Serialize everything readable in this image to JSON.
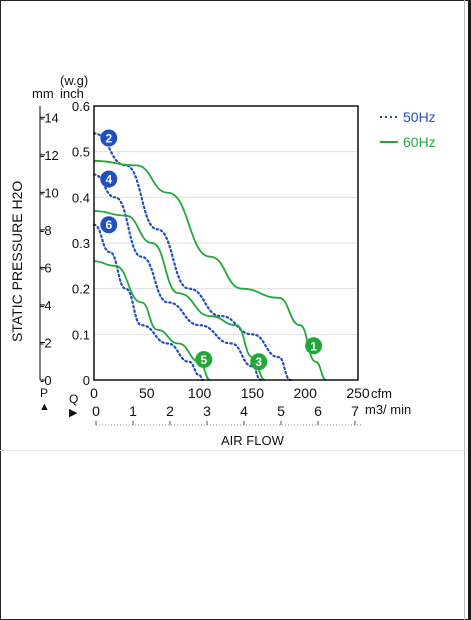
{
  "chart_data": {
    "type": "line",
    "y_units": {
      "mm": "mm",
      "inch": "inch",
      "wg": "(w.g)"
    },
    "ylabel": "STATIC PRESSURE H2O",
    "xlabel": "AIR FLOW",
    "x_units": {
      "cfm": "cfm",
      "m3": "m3/ min"
    },
    "p_marker": "P",
    "q_marker": "Q",
    "xlim": [
      0,
      250
    ],
    "ylim": [
      0,
      0.6
    ],
    "x_ticks_cfm": [
      0,
      50,
      100,
      150,
      200,
      250
    ],
    "x_ticks_m3": [
      0,
      1,
      2,
      3,
      4,
      5,
      6,
      7
    ],
    "y_ticks_inch": [
      "0",
      "0.1",
      "0.2",
      "0.3",
      "0.4",
      "0.5",
      "0.6"
    ],
    "y_ticks_mm": [
      0,
      2,
      4,
      6,
      8,
      10,
      12,
      14
    ],
    "grid": "horizontal",
    "legend": {
      "position": "top-right",
      "items": [
        {
          "label": "50Hz",
          "style": "dotted",
          "color": "#1f4fc0"
        },
        {
          "label": "60Hz",
          "style": "solid",
          "color": "#22a83a"
        }
      ]
    },
    "series": [
      {
        "name": "50Hz",
        "marker": "2",
        "color": "#1f4fc0",
        "style": "dotted",
        "x": [
          0,
          30,
          60,
          90,
          120,
          150,
          175,
          186
        ],
        "y": [
          0.54,
          0.47,
          0.33,
          0.2,
          0.14,
          0.1,
          0.05,
          0.0
        ]
      },
      {
        "name": "50Hz",
        "marker": "4",
        "color": "#1f4fc0",
        "style": "dotted",
        "x": [
          0,
          20,
          45,
          70,
          100,
          130,
          150,
          158
        ],
        "y": [
          0.45,
          0.4,
          0.27,
          0.17,
          0.12,
          0.08,
          0.03,
          0.0
        ]
      },
      {
        "name": "50Hz",
        "marker": "6",
        "color": "#1f4fc0",
        "style": "dotted",
        "x": [
          0,
          15,
          30,
          45,
          70,
          90,
          100,
          103
        ],
        "y": [
          0.34,
          0.28,
          0.2,
          0.12,
          0.08,
          0.04,
          0.01,
          0.0
        ]
      },
      {
        "name": "60Hz",
        "marker": "1",
        "color": "#22a83a",
        "style": "solid",
        "x": [
          0,
          40,
          70,
          110,
          140,
          175,
          195,
          210,
          220
        ],
        "y": [
          0.48,
          0.47,
          0.41,
          0.27,
          0.2,
          0.18,
          0.12,
          0.04,
          0.0
        ]
      },
      {
        "name": "60Hz",
        "marker": "3",
        "color": "#22a83a",
        "style": "solid",
        "x": [
          0,
          30,
          55,
          80,
          110,
          135,
          150,
          162
        ],
        "y": [
          0.37,
          0.36,
          0.3,
          0.19,
          0.14,
          0.12,
          0.05,
          0.0
        ]
      },
      {
        "name": "60Hz",
        "marker": "5",
        "color": "#22a83a",
        "style": "solid",
        "x": [
          0,
          20,
          45,
          60,
          80,
          100,
          110
        ],
        "y": [
          0.26,
          0.25,
          0.17,
          0.11,
          0.08,
          0.04,
          0.0
        ]
      }
    ],
    "marker_positions": [
      {
        "label": "2",
        "x": 14,
        "y": 0.53
      },
      {
        "label": "4",
        "x": 14,
        "y": 0.44
      },
      {
        "label": "6",
        "x": 14,
        "y": 0.34
      },
      {
        "label": "1",
        "x": 208,
        "y": 0.075
      },
      {
        "label": "3",
        "x": 156,
        "y": 0.04
      },
      {
        "label": "5",
        "x": 104,
        "y": 0.045
      }
    ]
  }
}
